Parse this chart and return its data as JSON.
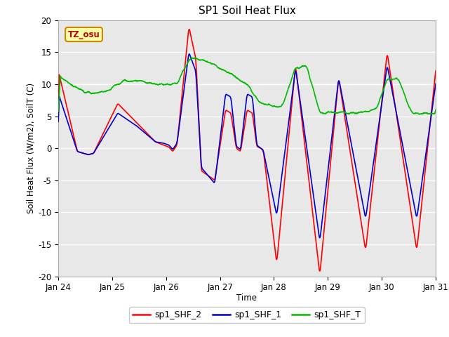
{
  "title": "SP1 Soil Heat Flux",
  "xlabel": "Time",
  "ylabel": "Soil Heat Flux (W/m2), SoilT (C)",
  "ylim": [
    -20,
    20
  ],
  "yticks": [
    -20,
    -15,
    -10,
    -5,
    0,
    5,
    10,
    15,
    20
  ],
  "xtick_labels": [
    "Jan 24",
    "Jan 25",
    "Jan 26",
    "Jan 27",
    "Jan 28",
    "Jan 29",
    "Jan 30",
    "Jan 31"
  ],
  "bg_color": "#e8e8e8",
  "fig_color": "#ffffff",
  "line_colors": {
    "shf2": "#ff0000",
    "shf1": "#0000cc",
    "shfT": "#00bb00"
  },
  "line_widths": {
    "shf2": 1.2,
    "shf1": 1.2,
    "shfT": 1.2
  },
  "legend_labels": [
    "sp1_SHF_2",
    "sp1_SHF_1",
    "sp1_SHF_T"
  ],
  "tz_label": "TZ_osu",
  "tz_bg": "#ffffaa",
  "tz_border": "#cc8800"
}
